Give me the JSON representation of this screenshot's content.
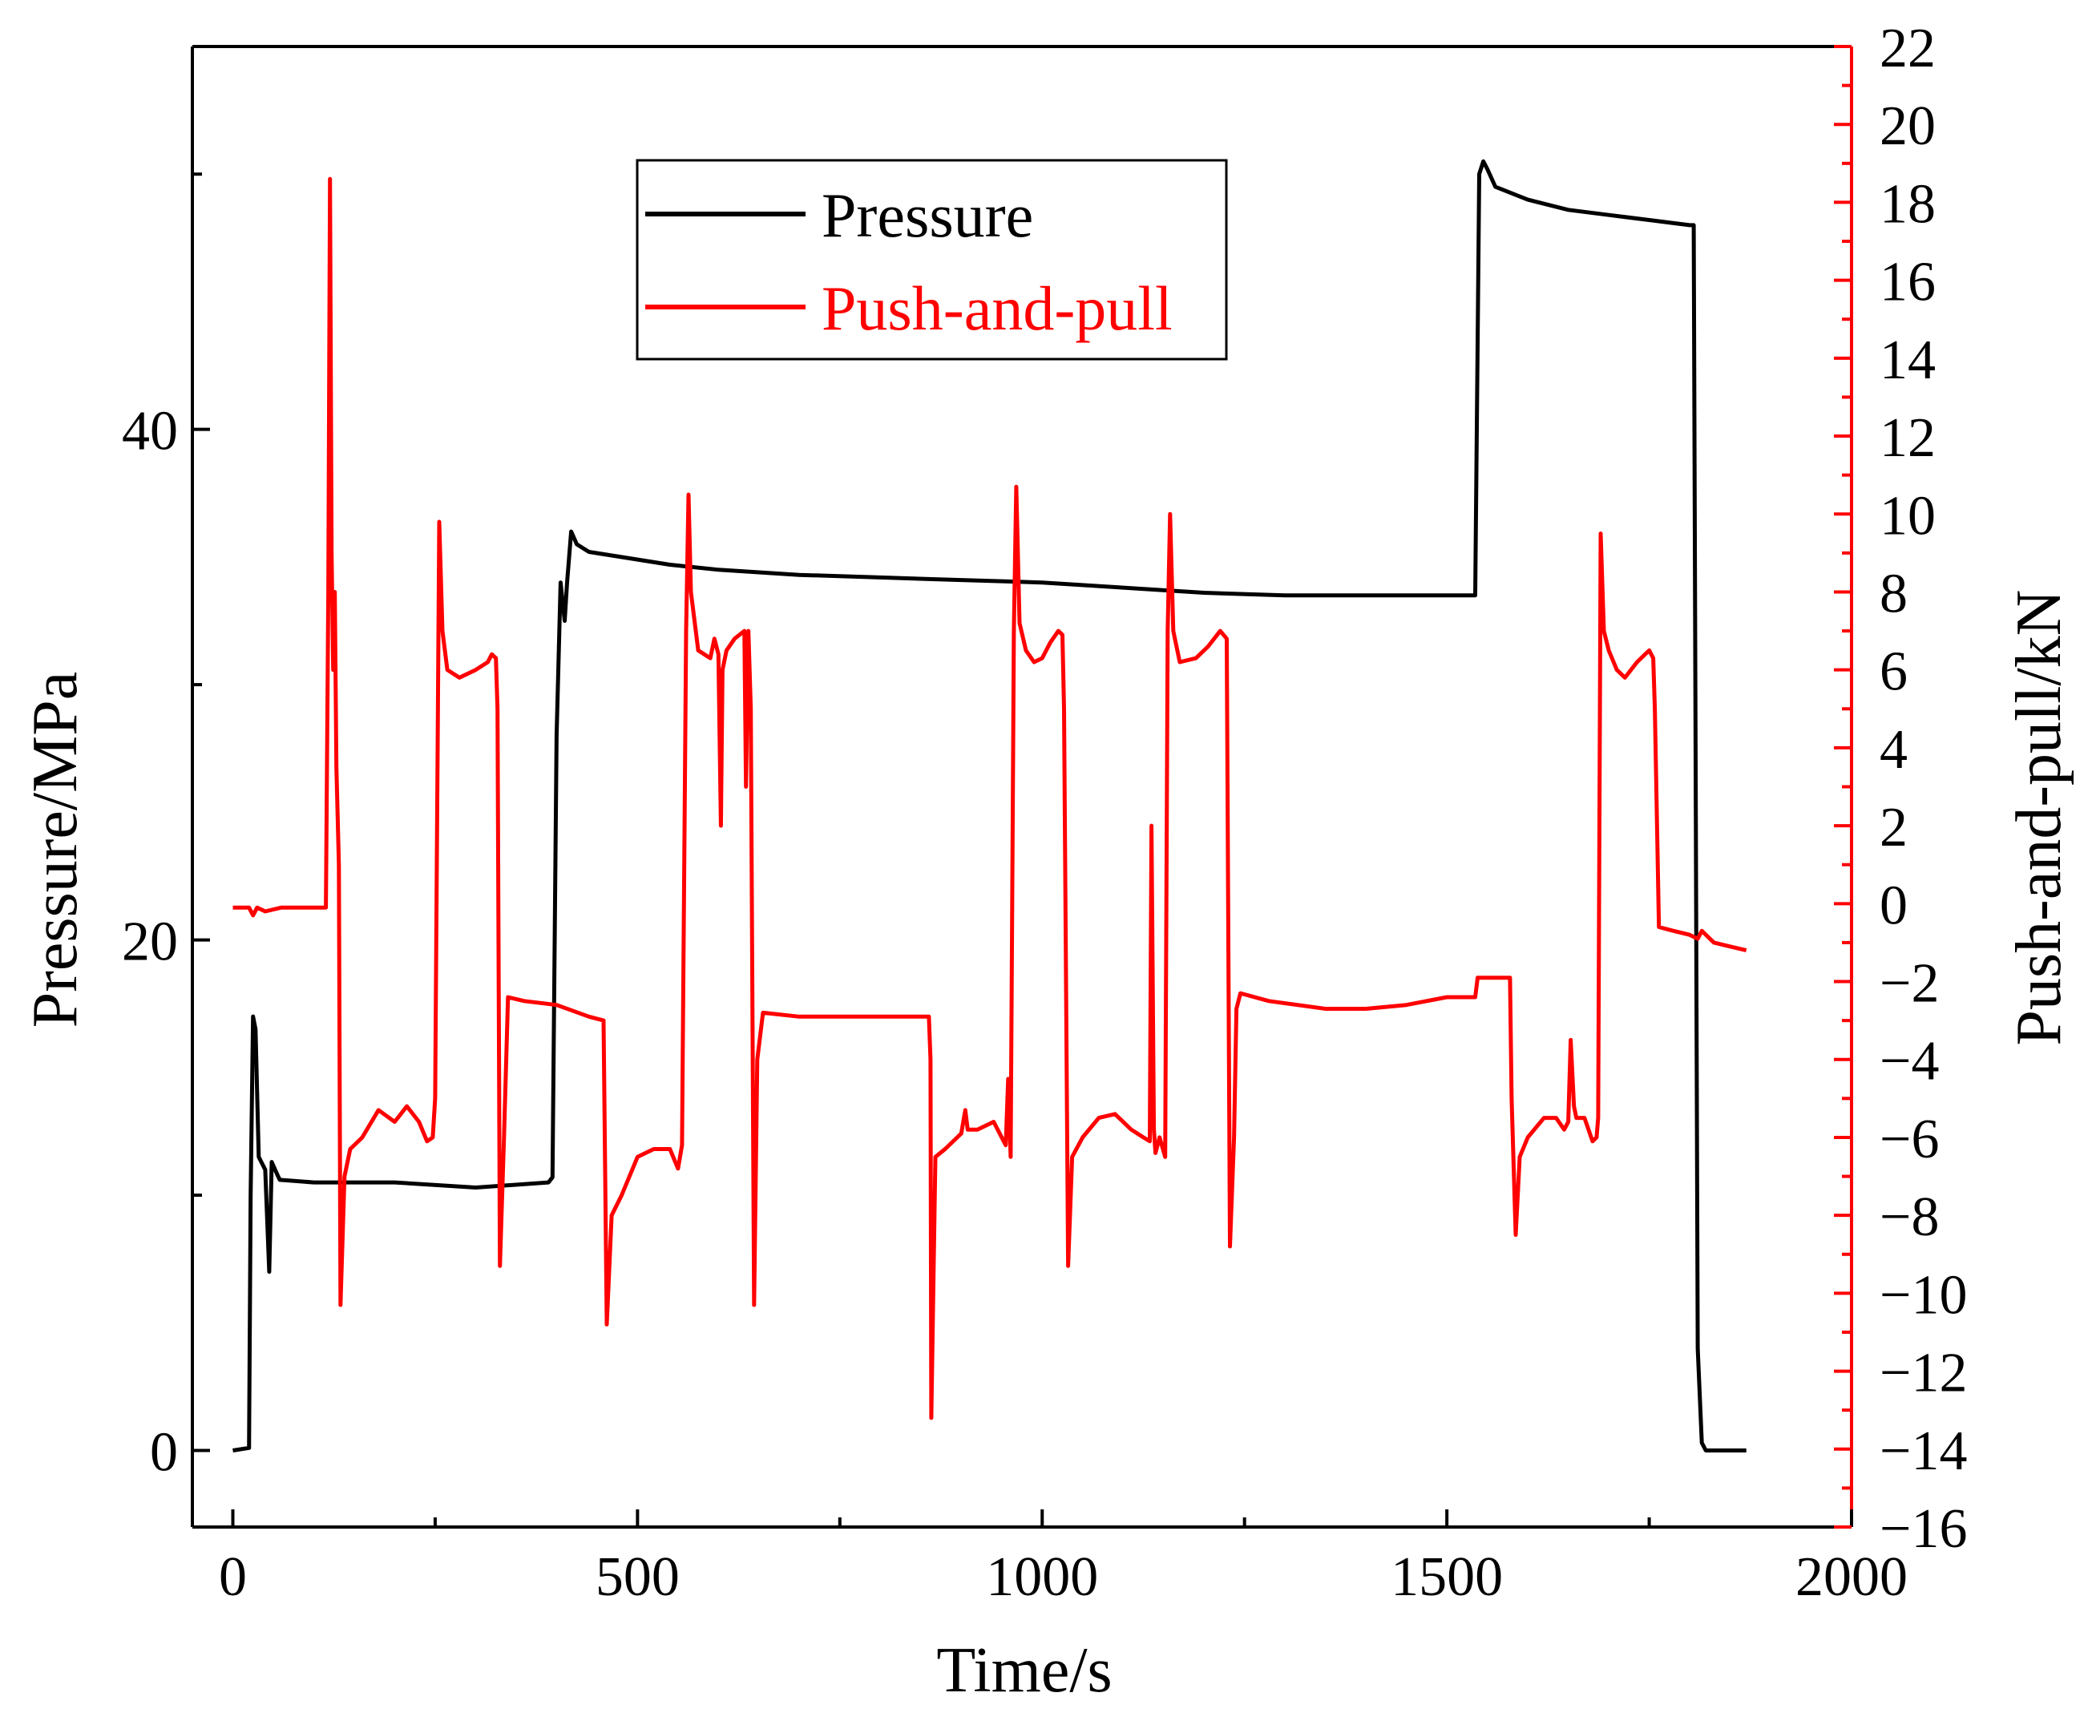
{
  "chart_data": {
    "type": "line",
    "title": "",
    "xlabel": "Time/s",
    "ylabel_left": "Pressure/MPa",
    "ylabel_right": "Push-and-pull/kN",
    "xlim": [
      -50,
      2000
    ],
    "ylim_left": [
      -3,
      55
    ],
    "ylim_right": [
      -16,
      22
    ],
    "x_ticks": [
      0,
      500,
      1000,
      1500,
      2000
    ],
    "y_left_ticks": [
      0,
      20,
      40
    ],
    "y_right_ticks": [
      -16,
      -14,
      -12,
      -10,
      -8,
      -6,
      -4,
      -2,
      0,
      2,
      4,
      6,
      8,
      10,
      12,
      14,
      16,
      18,
      20,
      22
    ],
    "grid": false,
    "legend_position": "top-center",
    "colors": {
      "pressure": "#000000",
      "push_and_pull": "#ff0000",
      "right_axis": "#ff0000"
    },
    "series": [
      {
        "name": "Pressure",
        "axis": "left",
        "color": "#000000",
        "points": [
          [
            0,
            0
          ],
          [
            20,
            0.1
          ],
          [
            22,
            10
          ],
          [
            25,
            17
          ],
          [
            28,
            16.5
          ],
          [
            32,
            11.5
          ],
          [
            40,
            11
          ],
          [
            45,
            7
          ],
          [
            48,
            11.3
          ],
          [
            55,
            10.8
          ],
          [
            58,
            10.6
          ],
          [
            100,
            10.5
          ],
          [
            200,
            10.5
          ],
          [
            300,
            10.3
          ],
          [
            390,
            10.5
          ],
          [
            395,
            10.7
          ],
          [
            400,
            28
          ],
          [
            405,
            34
          ],
          [
            410,
            32.5
          ],
          [
            413,
            34
          ],
          [
            418,
            36
          ],
          [
            425,
            35.5
          ],
          [
            440,
            35.2
          ],
          [
            480,
            35
          ],
          [
            540,
            34.7
          ],
          [
            600,
            34.5
          ],
          [
            700,
            34.3
          ],
          [
            800,
            34.2
          ],
          [
            900,
            34.1
          ],
          [
            1000,
            34
          ],
          [
            1100,
            33.8
          ],
          [
            1200,
            33.6
          ],
          [
            1300,
            33.5
          ],
          [
            1400,
            33.5
          ],
          [
            1500,
            33.5
          ],
          [
            1535,
            33.5
          ],
          [
            1540,
            50
          ],
          [
            1545,
            50.5
          ],
          [
            1550,
            50.2
          ],
          [
            1560,
            49.5
          ],
          [
            1600,
            49
          ],
          [
            1650,
            48.6
          ],
          [
            1700,
            48.4
          ],
          [
            1750,
            48.2
          ],
          [
            1800,
            48
          ],
          [
            1805,
            48
          ],
          [
            1810,
            4
          ],
          [
            1815,
            0.3
          ],
          [
            1820,
            0
          ],
          [
            1870,
            0
          ]
        ]
      },
      {
        "name": "Push-and-pull",
        "axis": "right",
        "color": "#ff0000",
        "points": [
          [
            0,
            -0.1
          ],
          [
            20,
            -0.1
          ],
          [
            25,
            -0.3
          ],
          [
            30,
            -0.1
          ],
          [
            40,
            -0.2
          ],
          [
            60,
            -0.1
          ],
          [
            100,
            -0.1
          ],
          [
            110,
            -0.1
          ],
          [
            115,
            -0.1
          ],
          [
            118,
            8
          ],
          [
            120,
            18.6
          ],
          [
            122,
            9
          ],
          [
            124,
            6
          ],
          [
            126,
            8
          ],
          [
            128,
            3.5
          ],
          [
            131,
            1
          ],
          [
            133,
            -10.3
          ],
          [
            138,
            -7
          ],
          [
            145,
            -6.3
          ],
          [
            160,
            -6
          ],
          [
            180,
            -5.3
          ],
          [
            200,
            -5.6
          ],
          [
            215,
            -5.2
          ],
          [
            230,
            -5.6
          ],
          [
            240,
            -6.1
          ],
          [
            247,
            -6
          ],
          [
            250,
            -5
          ],
          [
            255,
            9.8
          ],
          [
            259,
            7
          ],
          [
            265,
            6
          ],
          [
            280,
            5.8
          ],
          [
            300,
            6
          ],
          [
            315,
            6.2
          ],
          [
            320,
            6.4
          ],
          [
            325,
            6.3
          ],
          [
            327,
            5
          ],
          [
            330,
            -9.3
          ],
          [
            335,
            -6
          ],
          [
            340,
            -2.4
          ],
          [
            360,
            -2.5
          ],
          [
            400,
            -2.6
          ],
          [
            440,
            -2.9
          ],
          [
            458,
            -3
          ],
          [
            462,
            -10.8
          ],
          [
            468,
            -8
          ],
          [
            480,
            -7.5
          ],
          [
            500,
            -6.5
          ],
          [
            520,
            -6.3
          ],
          [
            540,
            -6.3
          ],
          [
            550,
            -6.8
          ],
          [
            555,
            -6.2
          ],
          [
            560,
            7
          ],
          [
            563,
            10.5
          ],
          [
            566,
            8
          ],
          [
            575,
            6.5
          ],
          [
            590,
            6.3
          ],
          [
            595,
            6.8
          ],
          [
            600,
            6.4
          ],
          [
            603,
            2
          ],
          [
            605,
            6
          ],
          [
            610,
            6.5
          ],
          [
            620,
            6.8
          ],
          [
            632,
            7
          ],
          [
            634,
            3
          ],
          [
            637,
            7
          ],
          [
            640,
            5
          ],
          [
            644,
            -10.3
          ],
          [
            648,
            -4
          ],
          [
            655,
            -2.8
          ],
          [
            700,
            -2.9
          ],
          [
            800,
            -2.9
          ],
          [
            860,
            -2.9
          ],
          [
            862,
            -4
          ],
          [
            863,
            -13.2
          ],
          [
            868,
            -6.5
          ],
          [
            880,
            -6.3
          ],
          [
            900,
            -5.9
          ],
          [
            905,
            -5.3
          ],
          [
            908,
            -5.8
          ],
          [
            920,
            -5.8
          ],
          [
            940,
            -5.6
          ],
          [
            955,
            -6.2
          ],
          [
            958,
            -4.5
          ],
          [
            961,
            -6.5
          ],
          [
            965,
            7
          ],
          [
            968,
            10.7
          ],
          [
            972,
            7.2
          ],
          [
            980,
            6.5
          ],
          [
            990,
            6.2
          ],
          [
            1000,
            6.3
          ],
          [
            1010,
            6.7
          ],
          [
            1020,
            7
          ],
          [
            1025,
            6.9
          ],
          [
            1027,
            5
          ],
          [
            1032,
            -9.3
          ],
          [
            1037,
            -6.5
          ],
          [
            1050,
            -6
          ],
          [
            1070,
            -5.5
          ],
          [
            1090,
            -5.4
          ],
          [
            1110,
            -5.8
          ],
          [
            1125,
            -6
          ],
          [
            1133,
            -6.1
          ],
          [
            1135,
            2
          ],
          [
            1138,
            -5.8
          ],
          [
            1140,
            -6.4
          ],
          [
            1145,
            -6
          ],
          [
            1152,
            -6.5
          ],
          [
            1155,
            7
          ],
          [
            1158,
            10
          ],
          [
            1162,
            7
          ],
          [
            1170,
            6.2
          ],
          [
            1190,
            6.3
          ],
          [
            1205,
            6.6
          ],
          [
            1220,
            7
          ],
          [
            1228,
            6.8
          ],
          [
            1232,
            -8.8
          ],
          [
            1237,
            -6
          ],
          [
            1240,
            -2.7
          ],
          [
            1245,
            -2.3
          ],
          [
            1280,
            -2.5
          ],
          [
            1350,
            -2.7
          ],
          [
            1400,
            -2.7
          ],
          [
            1450,
            -2.6
          ],
          [
            1500,
            -2.4
          ],
          [
            1535,
            -2.4
          ],
          [
            1538,
            -1.9
          ],
          [
            1560,
            -1.9
          ],
          [
            1578,
            -1.9
          ],
          [
            1580,
            -5
          ],
          [
            1585,
            -8.5
          ],
          [
            1590,
            -6.5
          ],
          [
            1600,
            -6
          ],
          [
            1620,
            -5.5
          ],
          [
            1635,
            -5.5
          ],
          [
            1645,
            -5.8
          ],
          [
            1650,
            -5.6
          ],
          [
            1653,
            -3.5
          ],
          [
            1657,
            -5.2
          ],
          [
            1660,
            -5.5
          ],
          [
            1670,
            -5.5
          ],
          [
            1680,
            -6.1
          ],
          [
            1685,
            -6
          ],
          [
            1687,
            -5.5
          ],
          [
            1690,
            9.5
          ],
          [
            1694,
            7
          ],
          [
            1700,
            6.5
          ],
          [
            1710,
            6
          ],
          [
            1720,
            5.8
          ],
          [
            1735,
            6.2
          ],
          [
            1745,
            6.4
          ],
          [
            1750,
            6.5
          ],
          [
            1755,
            6.3
          ],
          [
            1757,
            5
          ],
          [
            1762,
            -0.6
          ],
          [
            1780,
            -0.7
          ],
          [
            1800,
            -0.8
          ],
          [
            1810,
            -0.9
          ],
          [
            1815,
            -0.7
          ],
          [
            1830,
            -1
          ],
          [
            1850,
            -1.1
          ],
          [
            1870,
            -1.2
          ]
        ]
      }
    ]
  }
}
